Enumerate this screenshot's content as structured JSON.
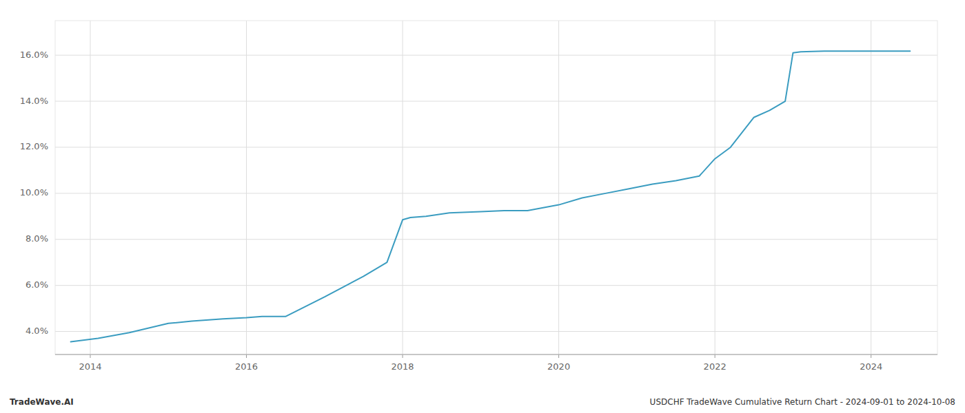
{
  "chart_data": {
    "type": "line",
    "x": [
      2013.75,
      2014.1,
      2014.5,
      2015.0,
      2015.3,
      2015.7,
      2016.0,
      2016.2,
      2016.5,
      2017.0,
      2017.5,
      2017.8,
      2018.0,
      2018.1,
      2018.3,
      2018.6,
      2019.0,
      2019.3,
      2019.6,
      2020.0,
      2020.3,
      2020.6,
      2020.9,
      2021.2,
      2021.5,
      2021.8,
      2022.0,
      2022.2,
      2022.5,
      2022.7,
      2022.9,
      2023.0,
      2023.1,
      2023.4,
      2023.7,
      2024.0,
      2024.5
    ],
    "values": [
      3.55,
      3.7,
      3.95,
      4.35,
      4.45,
      4.55,
      4.6,
      4.65,
      4.65,
      5.5,
      6.4,
      7.0,
      8.85,
      8.95,
      9.0,
      9.15,
      9.2,
      9.25,
      9.25,
      9.5,
      9.8,
      10.0,
      10.2,
      10.4,
      10.55,
      10.75,
      11.5,
      12.0,
      13.3,
      13.6,
      14.0,
      16.1,
      16.15,
      16.18,
      16.18,
      16.18,
      16.18
    ],
    "color": "#3a9cc0",
    "xlim": [
      2013.55,
      2024.85
    ],
    "ylim": [
      3.0,
      17.5
    ],
    "xticks": [
      2014,
      2016,
      2018,
      2020,
      2022,
      2024
    ],
    "yticks": [
      {
        "value": 4.0,
        "label": "4.0%"
      },
      {
        "value": 6.0,
        "label": "6.0%"
      },
      {
        "value": 8.0,
        "label": "8.0%"
      },
      {
        "value": 10.0,
        "label": "10.0%"
      },
      {
        "value": 12.0,
        "label": "12.0%"
      },
      {
        "value": 14.0,
        "label": "14.0%"
      },
      {
        "value": 16.0,
        "label": "16.0%"
      }
    ],
    "grid": true,
    "annotations": [
      "TradeWave.AI",
      "USDCHF TradeWave Cumulative Return Chart - 2024-09-01 to 2024-10-08"
    ]
  }
}
